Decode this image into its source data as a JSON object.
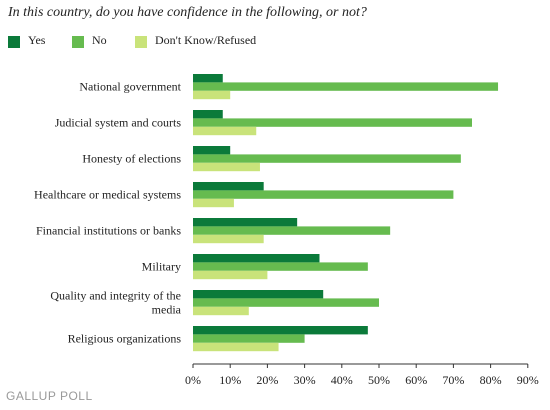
{
  "chart_data": {
    "type": "bar",
    "orientation": "horizontal",
    "title": "In this country, do you have confidence in the following, or not?",
    "categories": [
      [
        "National government"
      ],
      [
        "Judicial system and courts"
      ],
      [
        "Honesty of elections"
      ],
      [
        "Healthcare or medical systems"
      ],
      [
        "Financial institutions or banks"
      ],
      [
        "Military"
      ],
      [
        "Quality and integrity of the",
        "media"
      ],
      [
        "Religious organizations"
      ]
    ],
    "series": [
      {
        "name": "Yes",
        "color": "#0b7a3a",
        "values": [
          8,
          8,
          10,
          19,
          28,
          34,
          35,
          47
        ]
      },
      {
        "name": "No",
        "color": "#66bb4f",
        "values": [
          82,
          75,
          72,
          70,
          53,
          47,
          50,
          30
        ]
      },
      {
        "name": "Don't Know/Refused",
        "color": "#c9e37a",
        "values": [
          10,
          17,
          18,
          11,
          19,
          20,
          15,
          23
        ]
      }
    ],
    "xlim": [
      0,
      90
    ],
    "xticks": [
      0,
      10,
      20,
      30,
      40,
      50,
      60,
      70,
      80,
      90
    ],
    "tick_suffix": "%",
    "legend": "top",
    "grid": false
  },
  "source": "GALLUP POLL"
}
